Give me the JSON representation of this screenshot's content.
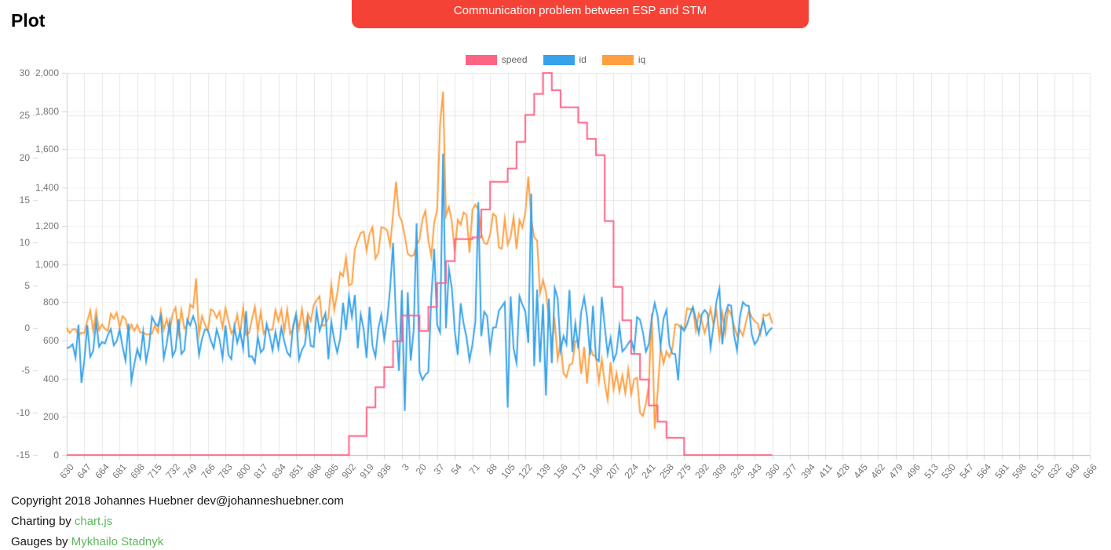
{
  "page": {
    "title": "Plot"
  },
  "toast": {
    "message": "Communication problem between ESP and STM",
    "background": "#f44336",
    "text_color": "#ffffff"
  },
  "footer": {
    "copyright": "Copyright 2018 Johannes Huebner dev@johanneshuebner.com",
    "charting_prefix": "Charting by ",
    "charting_link": "chart.js",
    "gauges_prefix": "Gauges by ",
    "gauges_link": "Mykhailo Stadnyk",
    "link_color": "#5cb85c"
  },
  "chart_data": {
    "type": "line",
    "title": "",
    "legend": {
      "position": "top",
      "items": [
        "speed",
        "id",
        "iq"
      ]
    },
    "grid": true,
    "x_labels": [
      "630",
      "647",
      "664",
      "681",
      "698",
      "715",
      "732",
      "749",
      "766",
      "783",
      "800",
      "817",
      "834",
      "851",
      "868",
      "885",
      "902",
      "919",
      "936",
      "3",
      "20",
      "37",
      "54",
      "71",
      "88",
      "105",
      "122",
      "139",
      "156",
      "173",
      "190",
      "207",
      "224",
      "241",
      "258",
      "275",
      "292",
      "309",
      "326",
      "343",
      "360",
      "377",
      "394",
      "411",
      "428",
      "445",
      "462",
      "479",
      "496",
      "513",
      "530",
      "547",
      "564",
      "581",
      "598",
      "615",
      "632",
      "649",
      "666"
    ],
    "data_ends_at_label": "360",
    "y_axis_outer": {
      "min": -15,
      "max": 30,
      "step": 5,
      "ticks": [
        "30",
        "25",
        "20",
        "15",
        "10",
        "5",
        "0",
        "-5",
        "-10",
        "-15"
      ]
    },
    "y_axis_inner": {
      "min": 0,
      "max": 2000,
      "step": 200,
      "ticks": [
        "2,000",
        "1,800",
        "1,600",
        "1,400",
        "1,200",
        "1,000",
        "800",
        "600",
        "400",
        "200",
        "0"
      ]
    },
    "series": [
      {
        "name": "speed",
        "color": "#ff6384",
        "axis": "inner",
        "style": "stepped",
        "values": [
          0,
          0,
          0,
          0,
          0,
          0,
          0,
          0,
          0,
          0,
          0,
          0,
          0,
          0,
          0,
          0,
          100,
          250,
          460,
          730,
          650,
          900,
          1130,
          1140,
          1430,
          1500,
          1780,
          2000,
          1820,
          1740,
          1570,
          880,
          530,
          260,
          90,
          0,
          0,
          0,
          0,
          0,
          0,
          null,
          null,
          null,
          null,
          null,
          null,
          null,
          null,
          null,
          null,
          null,
          null,
          null,
          null,
          null,
          null,
          null,
          null
        ]
      },
      {
        "name": "id",
        "color": "#36a2eb",
        "axis": "outer",
        "style": "noisy-line",
        "values": [
          -0.8,
          -1.2,
          -0.8,
          -1.5,
          -1.0,
          -1.3,
          -0.9,
          -1.4,
          -0.8,
          -1.2,
          -1.0,
          -1.3,
          -0.7,
          -1.1,
          -1.0,
          -0.5,
          0.0,
          0.5,
          -1.0,
          0.5,
          1.0,
          2.0,
          1.0,
          0.5,
          0.0,
          0.5,
          1.0,
          0.0,
          0.0,
          0.5,
          0.0,
          -0.5,
          0.0,
          -0.5,
          0.0,
          -0.5,
          0.3,
          0.0,
          0.2,
          -0.3,
          0.0,
          null,
          null,
          null,
          null,
          null,
          null,
          null,
          null,
          null,
          null,
          null,
          null,
          null,
          null,
          null,
          null,
          null,
          null
        ],
        "noise_amplitude": [
          2.8,
          3.0,
          2.6,
          3.2,
          3.4,
          2.8,
          2.6,
          3.0,
          2.8,
          2.6,
          3.0,
          3.2,
          2.6,
          2.8,
          3.0,
          3.4,
          4.0,
          5.0,
          6.0,
          6.5,
          7.0,
          9.0,
          5.5,
          6.0,
          5.0,
          5.5,
          6.0,
          5.5,
          4.5,
          4.0,
          4.0,
          3.5,
          3.5,
          3.5,
          3.0,
          3.0,
          3.0,
          3.4,
          3.0,
          3.0,
          2.5
        ],
        "peaks": [
          {
            "i": 0.9,
            "v": -6.5
          },
          {
            "i": 3.7,
            "v": -6.3
          },
          {
            "i": 18.5,
            "v": 10.0
          },
          {
            "i": 19.1,
            "v": -9.8
          },
          {
            "i": 19.8,
            "v": 12.3
          },
          {
            "i": 21.3,
            "v": 20.5
          },
          {
            "i": 23.3,
            "v": 14.8
          },
          {
            "i": 25.0,
            "v": -9.4
          },
          {
            "i": 26.3,
            "v": 15.8
          },
          {
            "i": 27.1,
            "v": -8.0
          },
          {
            "i": 34.6,
            "v": -6.2
          },
          {
            "i": 37.0,
            "v": 4.6
          }
        ]
      },
      {
        "name": "iq",
        "color": "#ff9f40",
        "axis": "outer",
        "style": "noisy-line",
        "values": [
          0.8,
          0.7,
          0.9,
          0.7,
          0.8,
          0.9,
          0.8,
          1.0,
          0.8,
          0.9,
          0.8,
          0.9,
          0.8,
          0.9,
          1.2,
          3.0,
          7.0,
          9.5,
          10.5,
          11.0,
          10.5,
          12.0,
          11.0,
          11.5,
          12.0,
          11.5,
          12.5,
          4.0,
          -3.5,
          -4.0,
          -4.5,
          -6.0,
          -7.0,
          -8.0,
          -2.0,
          0.5,
          0.7,
          0.5,
          0.6,
          0.7,
          0.5,
          null,
          null,
          null,
          null,
          null,
          null,
          null,
          null,
          null,
          null,
          null,
          null,
          null,
          null,
          null,
          null,
          null,
          null
        ],
        "noise_amplitude": [
          1.6,
          1.8,
          1.6,
          1.7,
          1.8,
          1.6,
          1.8,
          2.2,
          1.8,
          1.6,
          1.8,
          1.7,
          1.8,
          1.9,
          2.0,
          2.2,
          2.5,
          2.5,
          2.8,
          3.0,
          3.0,
          4.0,
          2.5,
          2.8,
          2.5,
          2.8,
          3.0,
          4.0,
          2.2,
          2.4,
          2.6,
          2.4,
          2.4,
          3.5,
          2.5,
          1.8,
          1.6,
          1.8,
          1.6,
          1.7,
          1.5
        ],
        "peaks": [
          {
            "i": 7.3,
            "v": 5.8
          },
          {
            "i": 18.6,
            "v": 17.2
          },
          {
            "i": 21.15,
            "v": 24.0
          },
          {
            "i": 21.35,
            "v": 27.8
          },
          {
            "i": 23.2,
            "v": 14.5
          },
          {
            "i": 26.2,
            "v": 17.8
          },
          {
            "i": 30.7,
            "v": -8.5
          },
          {
            "i": 32.7,
            "v": -10.4
          },
          {
            "i": 33.1,
            "v": 1.7
          },
          {
            "i": 33.4,
            "v": -11.9
          }
        ]
      }
    ]
  }
}
